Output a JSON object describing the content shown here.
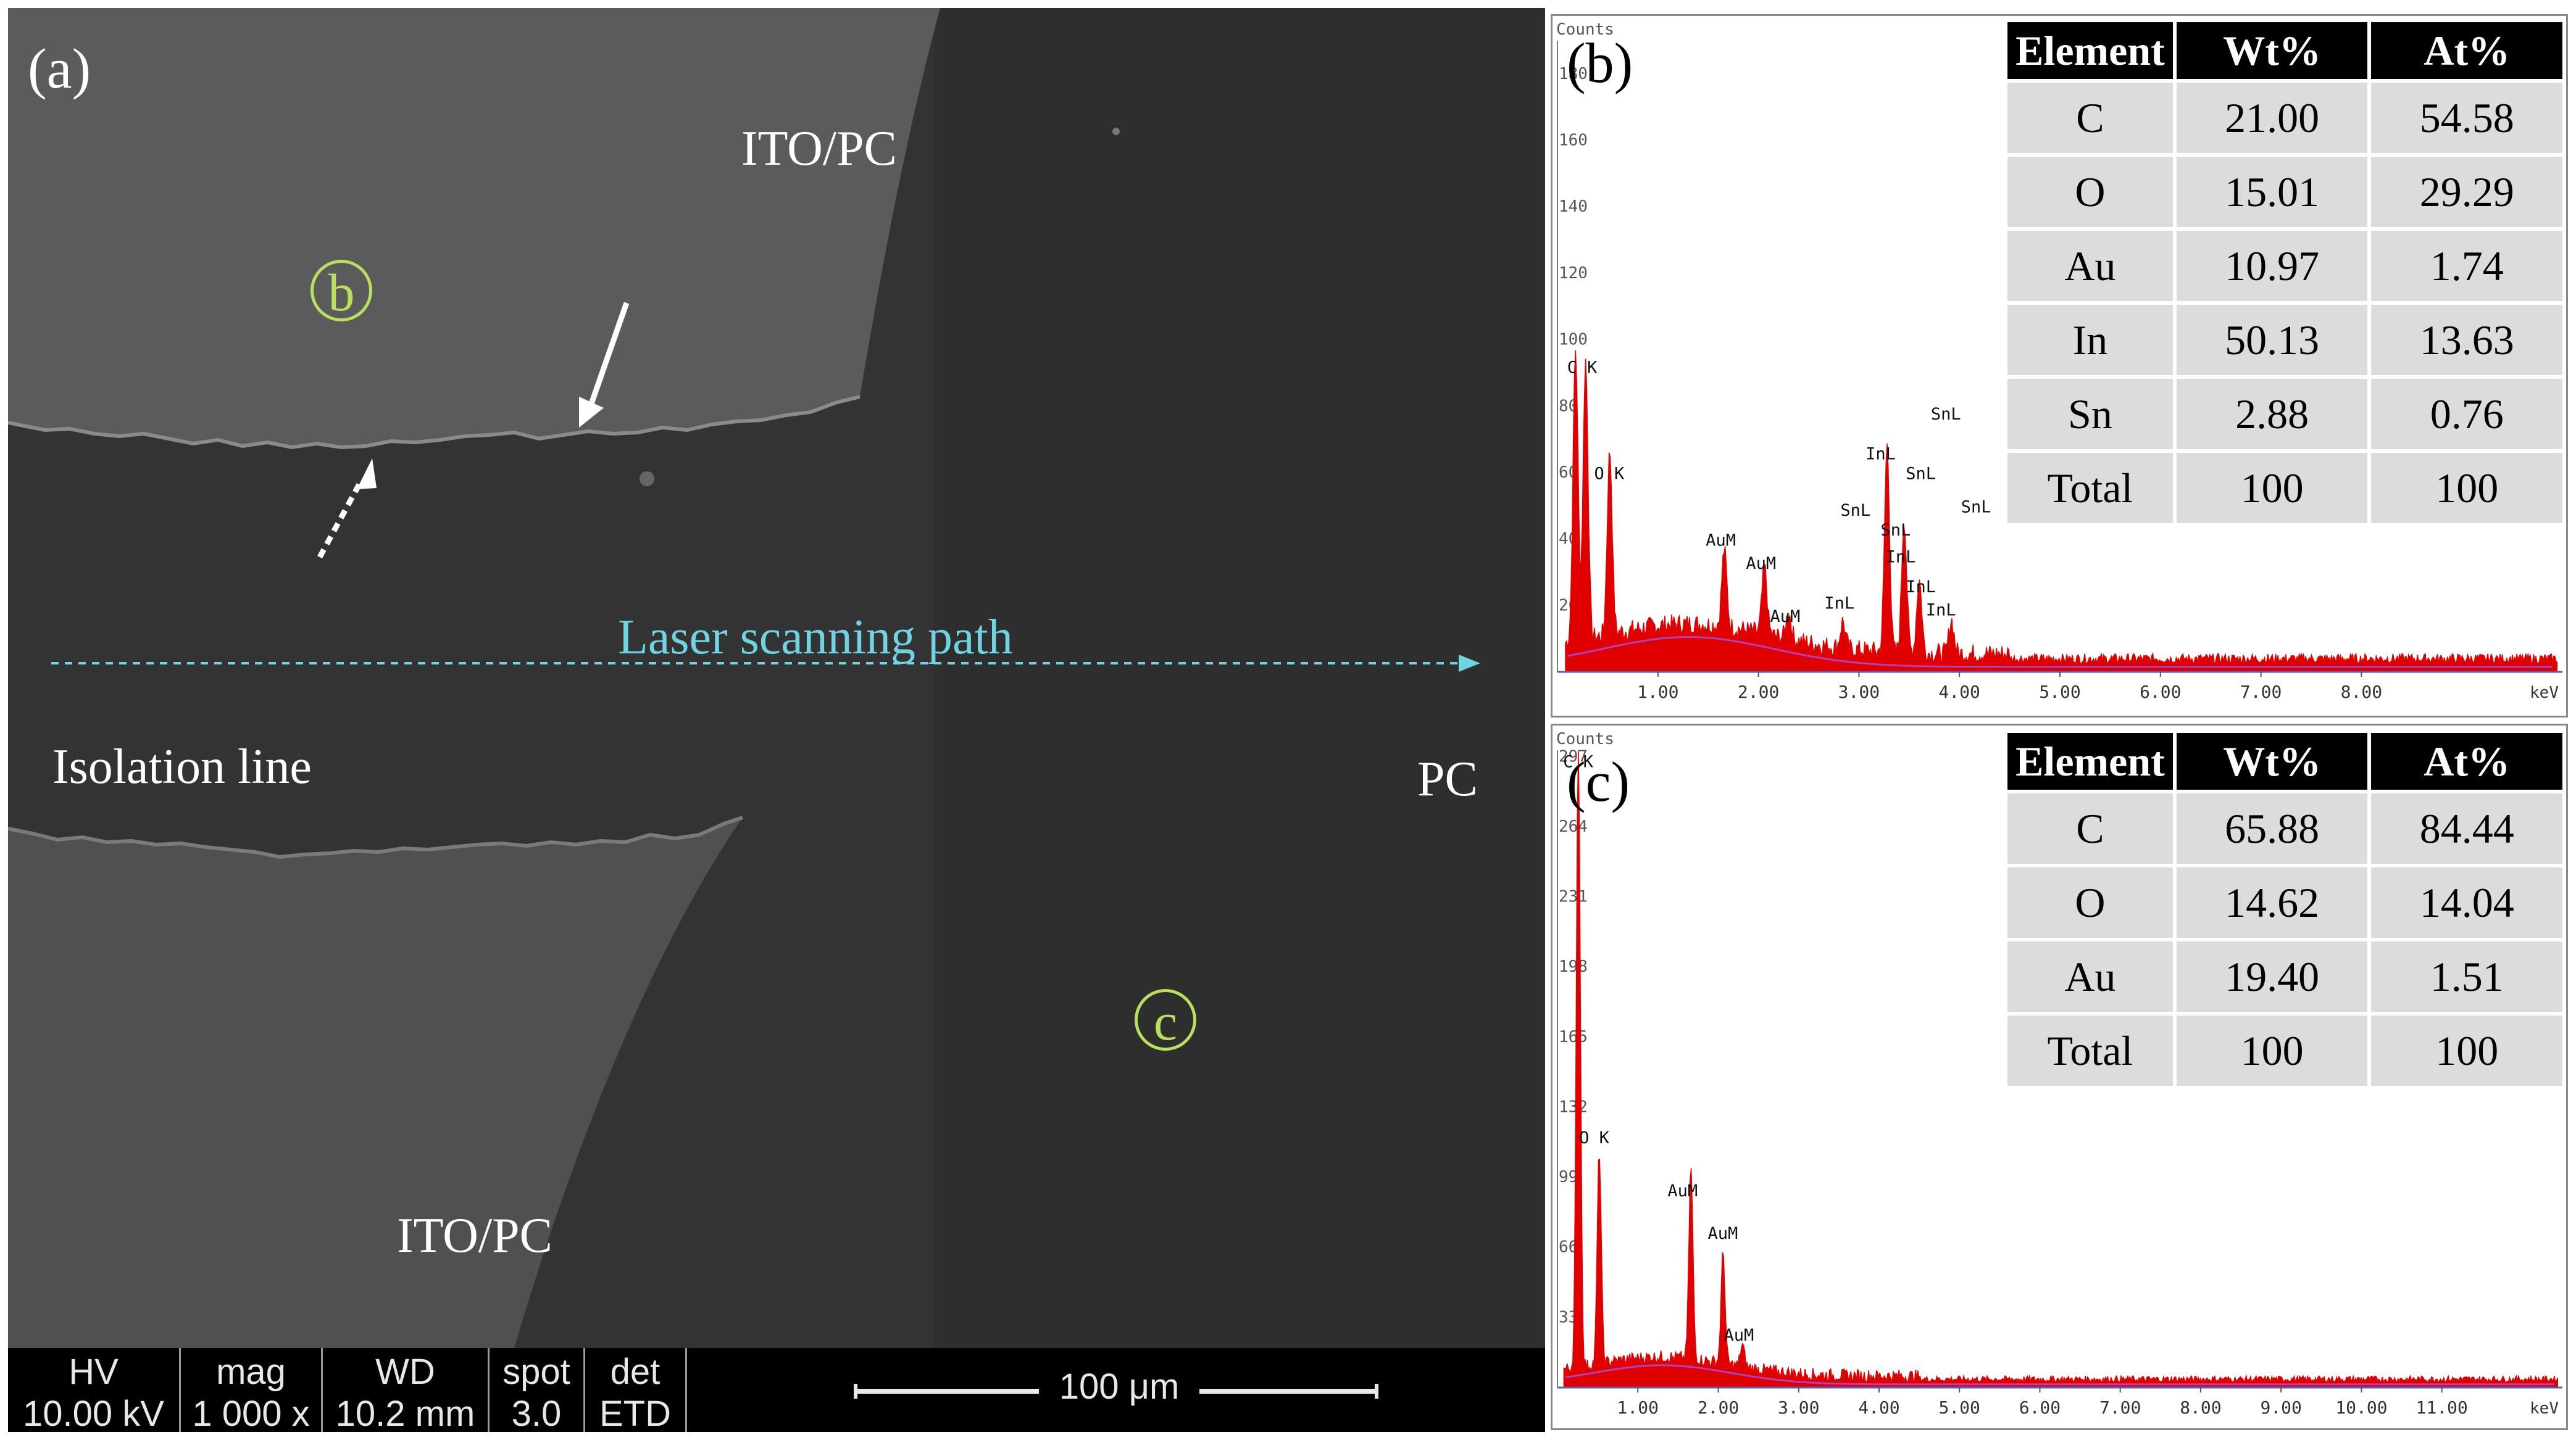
{
  "panel_a": {
    "label": "(a)",
    "regions": {
      "ito_top": "ITO/PC",
      "ito_bottom": "ITO/PC",
      "pc": "PC"
    },
    "isolation_label": "Isolation line",
    "laser_label": "Laser scanning path",
    "point_b": "b",
    "point_c": "c",
    "info_bar": {
      "hv_label": "HV",
      "hv_value": "10.00 kV",
      "mag_label": "mag",
      "mag_value": "1 000 x",
      "wd_label": "WD",
      "wd_value": "10.2 mm",
      "spot_label": "spot",
      "spot_value": "3.0",
      "det_label": "det",
      "det_value": "ETD",
      "scale_label": "100 μm"
    }
  },
  "panel_b": {
    "label": "(b)",
    "y_axis_title": "Counts",
    "x_unit": "keV",
    "table": {
      "headers": [
        "Element",
        "Wt%",
        "At%"
      ],
      "rows": [
        [
          "C",
          "21.00",
          "54.58"
        ],
        [
          "O",
          "15.01",
          "29.29"
        ],
        [
          "Au",
          "10.97",
          "1.74"
        ],
        [
          "In",
          "50.13",
          "13.63"
        ],
        [
          "Sn",
          "2.88",
          "0.76"
        ],
        [
          "Total",
          "100",
          "100"
        ]
      ]
    }
  },
  "panel_c": {
    "label": "(c)",
    "y_axis_title": "Counts",
    "x_unit": "keV",
    "table": {
      "headers": [
        "Element",
        "Wt%",
        "At%"
      ],
      "rows": [
        [
          "C",
          "65.88",
          "84.44"
        ],
        [
          "O",
          "14.62",
          "14.04"
        ],
        [
          "Au",
          "19.40",
          "1.51"
        ],
        [
          "Total",
          "100",
          "100"
        ]
      ]
    }
  },
  "chart_data": [
    {
      "type": "area",
      "panel": "b",
      "xlabel": "keV",
      "ylabel": "Counts",
      "xlim": [
        0,
        10
      ],
      "ylim": [
        0,
        190
      ],
      "x_ticks": [
        "1.00",
        "2.00",
        "3.00",
        "4.00",
        "5.00",
        "6.00",
        "7.00",
        "8.00"
      ],
      "y_ticks": [
        "20",
        "40",
        "60",
        "80",
        "100",
        "120",
        "140",
        "160",
        "180"
      ],
      "peaks": [
        {
          "x": 0.18,
          "y": 88
        },
        {
          "x": 0.28,
          "y": 84
        },
        {
          "x": 0.52,
          "y": 55
        },
        {
          "x": 1.66,
          "y": 23
        },
        {
          "x": 2.06,
          "y": 20
        },
        {
          "x": 2.3,
          "y": 8
        },
        {
          "x": 2.84,
          "y": 8
        },
        {
          "x": 3.28,
          "y": 62
        },
        {
          "x": 3.45,
          "y": 40
        },
        {
          "x": 3.6,
          "y": 22
        },
        {
          "x": 3.92,
          "y": 10
        }
      ],
      "peak_labels": [
        {
          "text": "C K",
          "x": 0.28,
          "y": 90
        },
        {
          "text": "O K",
          "x": 0.55,
          "y": 58
        },
        {
          "text": "AuM",
          "x": 1.66,
          "y": 38
        },
        {
          "text": "AuM",
          "x": 2.06,
          "y": 31
        },
        {
          "text": "AuM",
          "x": 2.3,
          "y": 15
        },
        {
          "text": "InL",
          "x": 2.84,
          "y": 19
        },
        {
          "text": "SnL",
          "x": 3.0,
          "y": 47
        },
        {
          "text": "InL",
          "x": 3.25,
          "y": 64
        },
        {
          "text": "SnL",
          "x": 3.4,
          "y": 41
        },
        {
          "text": "InL",
          "x": 3.45,
          "y": 33
        },
        {
          "text": "InL",
          "x": 3.65,
          "y": 24
        },
        {
          "text": "InL",
          "x": 3.85,
          "y": 17
        },
        {
          "text": "SnL",
          "x": 3.9,
          "y": 76
        },
        {
          "text": "SnL",
          "x": 3.65,
          "y": 58
        },
        {
          "text": "SnL",
          "x": 4.2,
          "y": 48
        }
      ]
    },
    {
      "type": "area",
      "panel": "c",
      "xlabel": "keV",
      "ylabel": "Counts",
      "xlim": [
        0,
        12.5
      ],
      "ylim": [
        0,
        300
      ],
      "x_ticks": [
        "1.00",
        "2.00",
        "3.00",
        "4.00",
        "5.00",
        "6.00",
        "7.00",
        "8.00",
        "9.00",
        "10.00",
        "11.00"
      ],
      "y_ticks": [
        "33",
        "66",
        "99",
        "132",
        "165",
        "198",
        "231",
        "264",
        "297"
      ],
      "peaks": [
        {
          "x": 0.26,
          "y": 295
        },
        {
          "x": 0.52,
          "y": 100
        },
        {
          "x": 1.66,
          "y": 90
        },
        {
          "x": 2.06,
          "y": 52
        },
        {
          "x": 2.3,
          "y": 10
        }
      ],
      "peak_labels": [
        {
          "text": "C K",
          "x": 0.3,
          "y": 292
        },
        {
          "text": "O K",
          "x": 0.5,
          "y": 115
        },
        {
          "text": "AuM",
          "x": 1.6,
          "y": 90
        },
        {
          "text": "AuM",
          "x": 2.1,
          "y": 70
        },
        {
          "text": "AuM",
          "x": 2.3,
          "y": 22
        }
      ]
    }
  ]
}
